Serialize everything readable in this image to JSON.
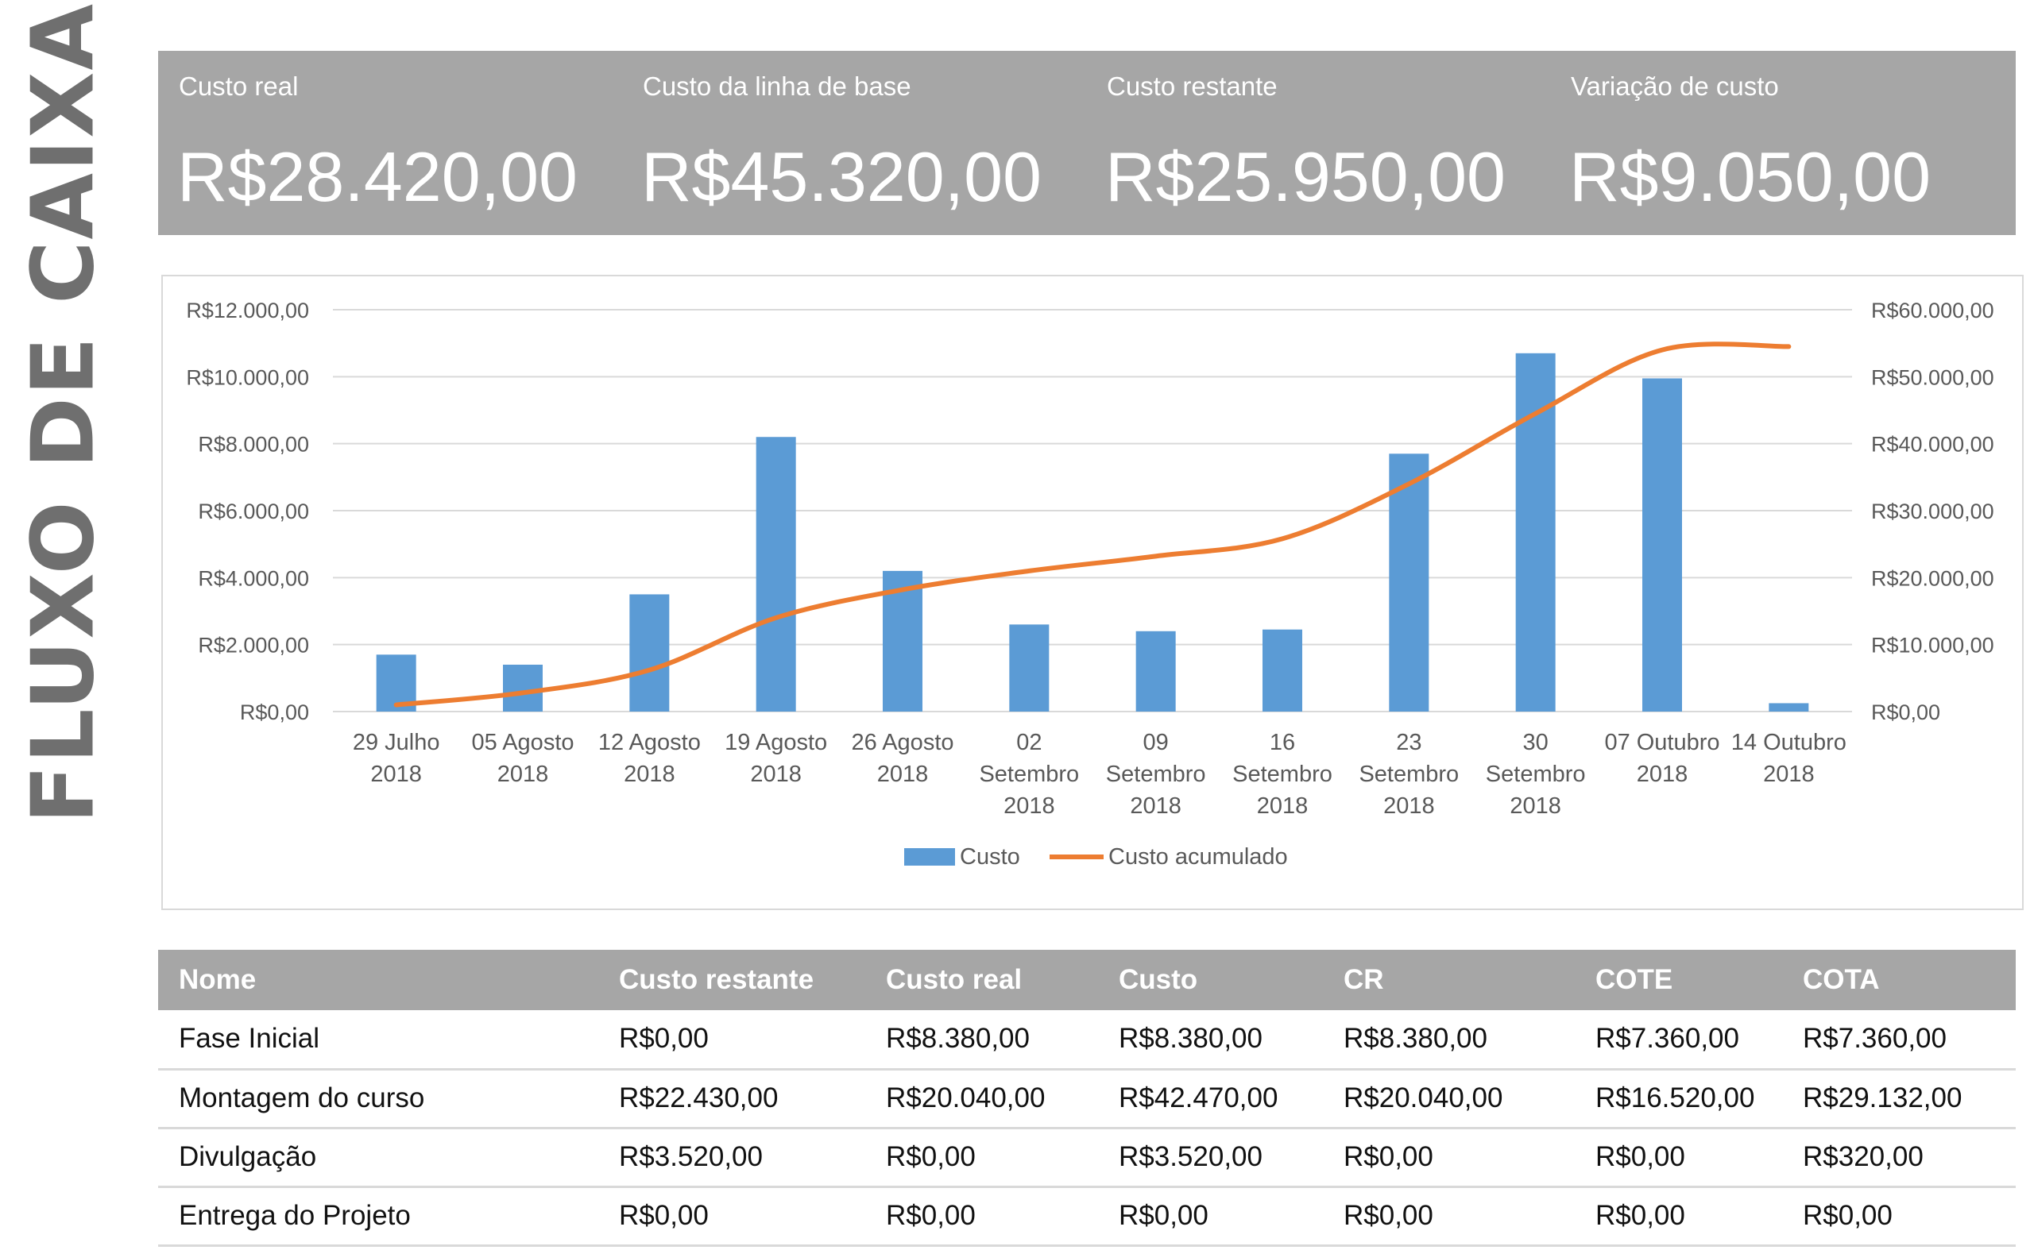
{
  "side_title": "FLUXO DE CAIXA",
  "kpis": [
    {
      "label": "Custo real",
      "value": "R$28.420,00"
    },
    {
      "label": "Custo da linha de base",
      "value": "R$45.320,00"
    },
    {
      "label": "Custo restante",
      "value": "R$25.950,00"
    },
    {
      "label": "Variação de custo",
      "value": "R$9.050,00"
    }
  ],
  "chart_data": {
    "type": "bar",
    "categories": [
      [
        "29 Julho",
        "2018"
      ],
      [
        "05 Agosto",
        "2018"
      ],
      [
        "12 Agosto",
        "2018"
      ],
      [
        "19 Agosto",
        "2018"
      ],
      [
        "26 Agosto",
        "2018"
      ],
      [
        "02",
        "Setembro",
        "2018"
      ],
      [
        "09",
        "Setembro",
        "2018"
      ],
      [
        "16",
        "Setembro",
        "2018"
      ],
      [
        "23",
        "Setembro",
        "2018"
      ],
      [
        "30",
        "Setembro",
        "2018"
      ],
      [
        "07 Outubro",
        "2018"
      ],
      [
        "14 Outubro",
        "2018"
      ]
    ],
    "series": [
      {
        "name": "Custo",
        "type": "bar",
        "axis": "left",
        "color": "#5b9bd5",
        "values": [
          1700,
          1400,
          3500,
          8200,
          4200,
          2600,
          2400,
          2450,
          7700,
          10700,
          9950,
          250
        ]
      },
      {
        "name": "Custo acumulado",
        "type": "line",
        "axis": "right",
        "color": "#ed7d31",
        "values": [
          1000,
          2800,
          6200,
          14000,
          18200,
          21000,
          23200,
          25800,
          34000,
          44500,
          54000,
          54500
        ]
      }
    ],
    "y_left": {
      "min": 0,
      "max": 12000,
      "ticks": [
        "R$0,00",
        "R$2.000,00",
        "R$4.000,00",
        "R$6.000,00",
        "R$8.000,00",
        "R$10.000,00",
        "R$12.000,00"
      ]
    },
    "y_right": {
      "min": 0,
      "max": 60000,
      "ticks": [
        "R$0,00",
        "R$10.000,00",
        "R$20.000,00",
        "R$30.000,00",
        "R$40.000,00",
        "R$50.000,00",
        "R$60.000,00"
      ]
    },
    "grid": true,
    "legend": "bottom"
  },
  "table": {
    "headers": [
      "Nome",
      "Custo restante",
      "Custo real",
      "Custo",
      "CR",
      "COTE",
      "COTA"
    ],
    "rows": [
      [
        "Fase Inicial",
        "R$0,00",
        "R$8.380,00",
        "R$8.380,00",
        "R$8.380,00",
        "R$7.360,00",
        "R$7.360,00"
      ],
      [
        "Montagem do curso",
        "R$22.430,00",
        "R$20.040,00",
        "R$42.470,00",
        "R$20.040,00",
        "R$16.520,00",
        "R$29.132,00"
      ],
      [
        "Divulgação",
        "R$3.520,00",
        "R$0,00",
        "R$3.520,00",
        "R$0,00",
        "R$0,00",
        "R$320,00"
      ],
      [
        "Entrega do Projeto",
        "R$0,00",
        "R$0,00",
        "R$0,00",
        "R$0,00",
        "R$0,00",
        "R$0,00"
      ]
    ]
  }
}
